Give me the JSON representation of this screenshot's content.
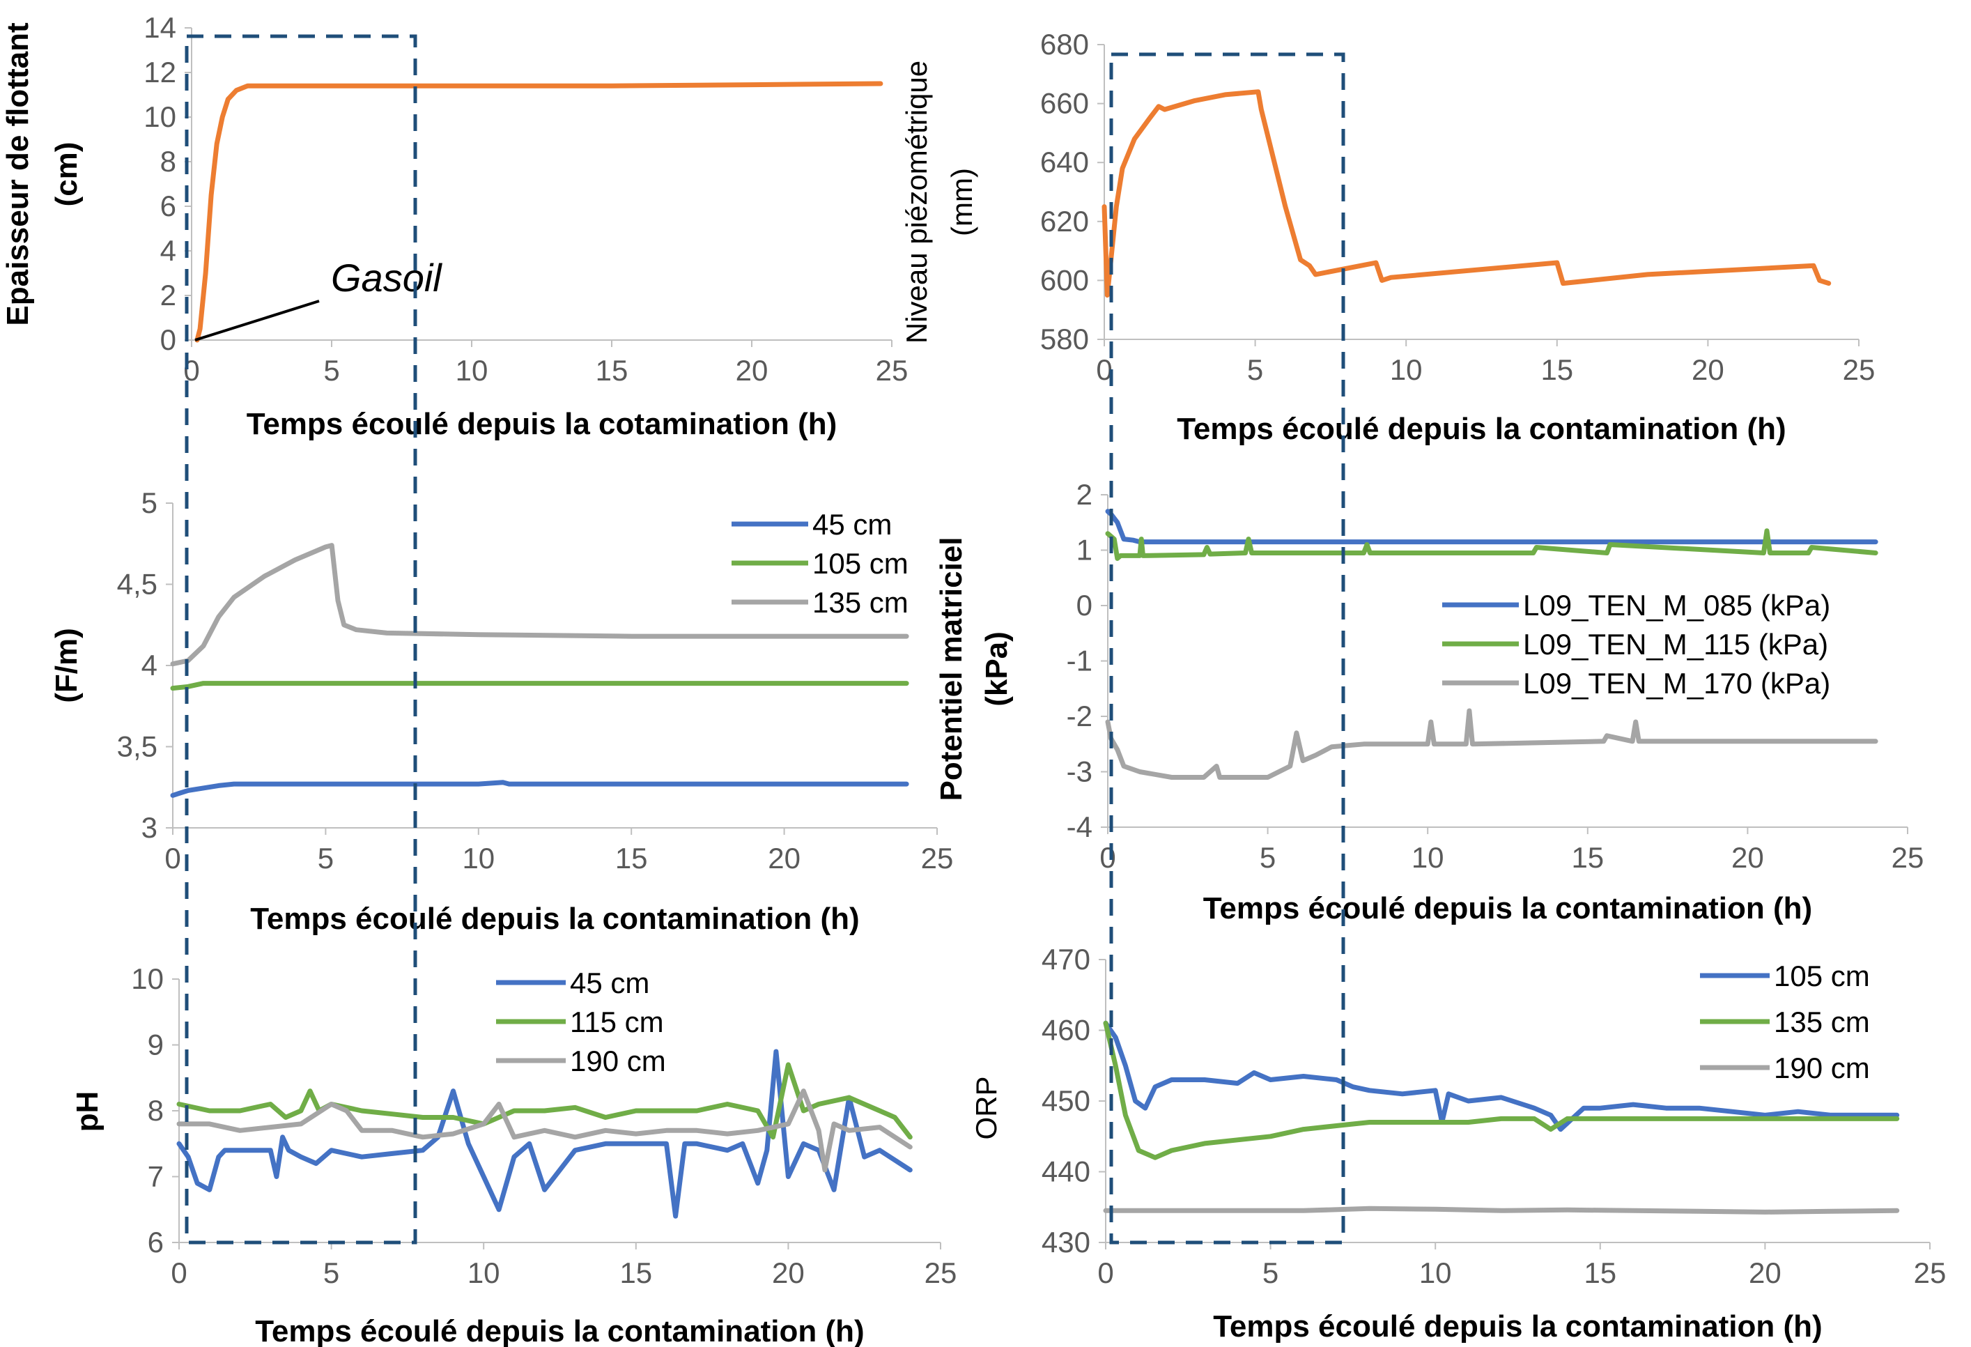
{
  "colors": {
    "orange": "#ED7D31",
    "blue": "#4472C4",
    "green": "#70AD47",
    "gray": "#A5A5A5",
    "axis": "#BFBFBF",
    "box": "#1F4E79"
  },
  "chart_data": [
    {
      "id": "p1",
      "type": "line",
      "xlabel": "Temps écoulé depuis la cotamination (h)",
      "ylabel": [
        "Epaisseur de flottant",
        "(cm)"
      ],
      "xlim": [
        0,
        25
      ],
      "ylim": [
        0,
        14
      ],
      "xticks": [
        "0",
        "5",
        "10",
        "15",
        "20",
        "25"
      ],
      "yticks": [
        "0",
        "2",
        "4",
        "6",
        "8",
        "10",
        "12",
        "14"
      ],
      "annotation": "Gasoil",
      "series": [
        {
          "color": "orange",
          "x": [
            0.2,
            0.3,
            0.5,
            0.7,
            0.9,
            1.1,
            1.3,
            1.6,
            2.0,
            2.5,
            5,
            10,
            15,
            20,
            24.6
          ],
          "y": [
            0,
            0.5,
            3,
            6.5,
            8.8,
            10.0,
            10.8,
            11.2,
            11.4,
            11.4,
            11.4,
            11.4,
            11.4,
            11.45,
            11.5
          ]
        }
      ]
    },
    {
      "id": "p2",
      "type": "line",
      "xlabel": "Temps écoulé depuis la contamination (h)",
      "ylabel": [
        "Niveau piézométrique",
        "(mm)"
      ],
      "xlim": [
        0,
        25
      ],
      "ylim": [
        580,
        680
      ],
      "xticks": [
        "0",
        "5",
        "10",
        "15",
        "20",
        "25"
      ],
      "yticks": [
        "580",
        "600",
        "620",
        "640",
        "660",
        "680"
      ],
      "series": [
        {
          "color": "orange",
          "x": [
            0,
            0.1,
            0.2,
            0.4,
            0.6,
            1.0,
            1.5,
            1.8,
            2.0,
            3,
            4,
            5.1,
            5.2,
            6.0,
            6.5,
            6.8,
            7.0,
            9.0,
            9.2,
            9.5,
            15.0,
            15.2,
            18,
            23.5,
            23.7,
            24.0
          ],
          "y": [
            625,
            595,
            605,
            625,
            638,
            648,
            655,
            659,
            658,
            661,
            663,
            664,
            658,
            625,
            607,
            605,
            602,
            606,
            600,
            601,
            606,
            599,
            602,
            605,
            600,
            599
          ]
        }
      ]
    },
    {
      "id": "p3",
      "type": "line",
      "xlabel": "Temps écoulé depuis la contamination (h)",
      "ylabel": [
        "(F/m)"
      ],
      "xlim": [
        0,
        25
      ],
      "ylim": [
        3,
        5
      ],
      "xticks": [
        "0",
        "5",
        "10",
        "15",
        "20",
        "25"
      ],
      "yticks": [
        "3",
        "3,5",
        "4",
        "4,5",
        "5"
      ],
      "legend": [
        "45 cm",
        "105 cm",
        "135 cm"
      ],
      "series": [
        {
          "name": "45 cm",
          "color": "blue",
          "x": [
            0,
            0.5,
            1.5,
            2,
            5,
            10,
            10.8,
            11,
            15,
            20,
            24
          ],
          "y": [
            3.2,
            3.23,
            3.26,
            3.27,
            3.27,
            3.27,
            3.28,
            3.27,
            3.27,
            3.27,
            3.27
          ]
        },
        {
          "name": "105 cm",
          "color": "green",
          "x": [
            0,
            0.5,
            1,
            5,
            10,
            15,
            20,
            24
          ],
          "y": [
            3.86,
            3.87,
            3.89,
            3.89,
            3.89,
            3.89,
            3.89,
            3.89
          ]
        },
        {
          "name": "135 cm",
          "color": "gray",
          "x": [
            0,
            0.5,
            1,
            1.5,
            2,
            3,
            4,
            5.0,
            5.2,
            5.4,
            5.6,
            6,
            7,
            10,
            15,
            20,
            24
          ],
          "y": [
            4.01,
            4.03,
            4.12,
            4.3,
            4.42,
            4.55,
            4.65,
            4.73,
            4.74,
            4.4,
            4.25,
            4.22,
            4.2,
            4.19,
            4.18,
            4.18,
            4.18
          ]
        }
      ]
    },
    {
      "id": "p4",
      "type": "line",
      "xlabel": "Temps écoulé depuis la contamination (h)",
      "ylabel": [
        "Potentiel matriciel",
        "(kPa)"
      ],
      "xlim": [
        0,
        25
      ],
      "ylim": [
        -4,
        2
      ],
      "xticks": [
        "0",
        "5",
        "10",
        "15",
        "20",
        "25"
      ],
      "yticks": [
        "-4",
        "-3",
        "-2",
        "-1",
        "0",
        "1",
        "2"
      ],
      "legend": [
        "L09_TEN_M_085  (kPa)",
        "L09_TEN_M_115  (kPa)",
        "L09_TEN_M_170  (kPa)"
      ],
      "series": [
        {
          "name": "L09_TEN_M_085  (kPa)",
          "color": "blue",
          "x": [
            0,
            0.1,
            0.3,
            0.5,
            0.8,
            1,
            5,
            10,
            15,
            20,
            24
          ],
          "y": [
            1.7,
            1.65,
            1.5,
            1.2,
            1.18,
            1.15,
            1.15,
            1.15,
            1.15,
            1.15,
            1.15
          ]
        },
        {
          "name": "L09_TEN_M_115  (kPa)",
          "color": "green",
          "x": [
            0,
            0.2,
            0.3,
            0.4,
            1,
            1.05,
            1.1,
            3,
            3.1,
            3.2,
            4.3,
            4.4,
            4.5,
            5.5,
            8,
            8.1,
            8.2,
            13.3,
            13.4,
            15.6,
            15.7,
            20.5,
            20.6,
            20.7,
            21.9,
            22.0,
            24
          ],
          "y": [
            1.3,
            1.2,
            0.85,
            0.9,
            0.9,
            1.2,
            0.9,
            0.92,
            1.05,
            0.93,
            0.95,
            1.2,
            0.95,
            0.95,
            0.95,
            1.1,
            0.95,
            0.95,
            1.05,
            0.95,
            1.1,
            0.95,
            1.35,
            0.95,
            0.95,
            1.05,
            0.95
          ]
        },
        {
          "name": "L09_TEN_M_170  (kPa)",
          "color": "gray",
          "x": [
            0,
            0.1,
            0.3,
            0.5,
            1,
            2,
            3,
            3.4,
            3.5,
            3.6,
            5,
            5.7,
            5.9,
            6.1,
            6.5,
            7,
            8,
            10,
            10.1,
            10.2,
            11.2,
            11.3,
            11.4,
            15.5,
            15.6,
            16.4,
            16.5,
            16.6,
            20,
            24
          ],
          "y": [
            -2.1,
            -2.4,
            -2.6,
            -2.9,
            -3.0,
            -3.1,
            -3.1,
            -2.9,
            -3.1,
            -3.1,
            -3.1,
            -2.9,
            -2.3,
            -2.8,
            -2.7,
            -2.55,
            -2.5,
            -2.5,
            -2.1,
            -2.5,
            -2.5,
            -1.9,
            -2.5,
            -2.45,
            -2.35,
            -2.45,
            -2.1,
            -2.45,
            -2.45,
            -2.45
          ]
        }
      ]
    },
    {
      "id": "p5",
      "type": "line",
      "xlabel": "Temps écoulé depuis la contamination (h)",
      "ylabel": [
        "pH"
      ],
      "xlim": [
        0,
        25
      ],
      "ylim": [
        6,
        10
      ],
      "xticks": [
        "0",
        "5",
        "10",
        "15",
        "20",
        "25"
      ],
      "yticks": [
        "6",
        "7",
        "8",
        "9",
        "10"
      ],
      "legend": [
        "45 cm",
        "115 cm",
        "190 cm"
      ],
      "series": [
        {
          "name": "45 cm",
          "color": "blue",
          "x": [
            0,
            0.3,
            0.6,
            1,
            1.3,
            1.5,
            2,
            3,
            3.2,
            3.4,
            3.6,
            4,
            4.5,
            5,
            6,
            7,
            8,
            8.5,
            9,
            9.5,
            10,
            10.5,
            11,
            11.5,
            12,
            13,
            14,
            15,
            16,
            16.3,
            16.6,
            17,
            18,
            18.5,
            19,
            19.3,
            19.6,
            20,
            20.5,
            21,
            21.5,
            22,
            22.5,
            23,
            24
          ],
          "y": [
            7.5,
            7.3,
            6.9,
            6.8,
            7.3,
            7.4,
            7.4,
            7.4,
            7.0,
            7.6,
            7.4,
            7.3,
            7.2,
            7.4,
            7.3,
            7.35,
            7.4,
            7.6,
            8.3,
            7.5,
            7.0,
            6.5,
            7.3,
            7.5,
            6.8,
            7.4,
            7.5,
            7.5,
            7.5,
            6.4,
            7.5,
            7.5,
            7.4,
            7.5,
            6.9,
            7.4,
            8.9,
            7.0,
            7.5,
            7.4,
            6.8,
            8.2,
            7.3,
            7.4,
            7.1
          ]
        },
        {
          "name": "115 cm",
          "color": "green",
          "x": [
            0,
            1,
            2,
            3,
            3.5,
            4,
            4.3,
            4.6,
            5,
            6,
            7,
            8,
            9,
            10,
            11,
            12,
            13,
            14,
            15,
            16,
            17,
            18,
            19,
            19.5,
            20,
            20.5,
            21,
            22,
            23,
            23.5,
            24
          ],
          "y": [
            8.1,
            8.0,
            8.0,
            8.1,
            7.9,
            8.0,
            8.3,
            8.0,
            8.1,
            8.0,
            7.95,
            7.9,
            7.9,
            7.8,
            8.0,
            8.0,
            8.05,
            7.9,
            8.0,
            8.0,
            8.0,
            8.1,
            8.0,
            7.6,
            8.7,
            8.0,
            8.1,
            8.2,
            8.0,
            7.9,
            7.6
          ]
        },
        {
          "name": "190 cm",
          "color": "gray",
          "x": [
            0,
            1,
            2,
            3,
            4,
            5,
            5.5,
            6,
            7,
            8,
            9,
            10,
            10.5,
            11,
            12,
            13,
            14,
            15,
            16,
            17,
            18,
            19,
            20,
            20.5,
            21,
            21.2,
            21.5,
            22,
            23,
            24
          ],
          "y": [
            7.8,
            7.8,
            7.7,
            7.75,
            7.8,
            8.1,
            8.0,
            7.7,
            7.7,
            7.6,
            7.65,
            7.8,
            8.1,
            7.6,
            7.7,
            7.6,
            7.7,
            7.65,
            7.7,
            7.7,
            7.65,
            7.7,
            7.8,
            8.3,
            7.7,
            7.1,
            7.8,
            7.7,
            7.75,
            7.45
          ]
        }
      ]
    },
    {
      "id": "p6",
      "type": "line",
      "xlabel": "Temps écoulé depuis la contamination (h)",
      "ylabel": [
        "ORP"
      ],
      "xlim": [
        0,
        25
      ],
      "ylim": [
        430,
        470
      ],
      "xticks": [
        "0",
        "5",
        "10",
        "15",
        "20",
        "25"
      ],
      "yticks": [
        "430",
        "440",
        "450",
        "460",
        "470"
      ],
      "legend": [
        "105 cm",
        "135 cm",
        "190 cm"
      ],
      "series": [
        {
          "name": "105 cm",
          "color": "blue",
          "x": [
            0,
            0.3,
            0.6,
            0.9,
            1.2,
            1.5,
            2,
            3,
            4,
            4.5,
            5,
            6,
            7,
            7.5,
            8,
            9,
            10,
            10.2,
            10.4,
            11,
            12,
            13,
            13.5,
            13.8,
            14.5,
            15,
            16,
            17,
            18,
            19,
            20,
            21,
            22,
            23,
            24
          ],
          "y": [
            461,
            459,
            455,
            450,
            449,
            452,
            453,
            453,
            452.5,
            454,
            453,
            453.5,
            453,
            452,
            451.5,
            451,
            451.5,
            447,
            451,
            450,
            450.5,
            449,
            448,
            446,
            449,
            449,
            449.5,
            449,
            449,
            448.5,
            448,
            448.5,
            448,
            448,
            448
          ]
        },
        {
          "name": "135 cm",
          "color": "green",
          "x": [
            0,
            0.3,
            0.6,
            1,
            1.5,
            2,
            3,
            4,
            5,
            6,
            7,
            8,
            9,
            10,
            11,
            12,
            13,
            13.5,
            14,
            15,
            16,
            17,
            18,
            19,
            20,
            21,
            22,
            23,
            24
          ],
          "y": [
            461,
            455,
            448,
            443,
            442,
            443,
            444,
            444.5,
            445,
            446,
            446.5,
            447,
            447,
            447,
            447,
            447.5,
            447.5,
            446,
            447.5,
            447.5,
            447.5,
            447.5,
            447.5,
            447.5,
            447.5,
            447.5,
            447.5,
            447.5,
            447.5
          ]
        },
        {
          "name": "190 cm",
          "color": "gray",
          "x": [
            0,
            2,
            4,
            6,
            8,
            10,
            12,
            14,
            16,
            18,
            20,
            22,
            24
          ],
          "y": [
            434.5,
            434.5,
            434.5,
            434.5,
            434.8,
            434.7,
            434.5,
            434.6,
            434.5,
            434.4,
            434.3,
            434.4,
            434.5
          ]
        }
      ]
    }
  ]
}
